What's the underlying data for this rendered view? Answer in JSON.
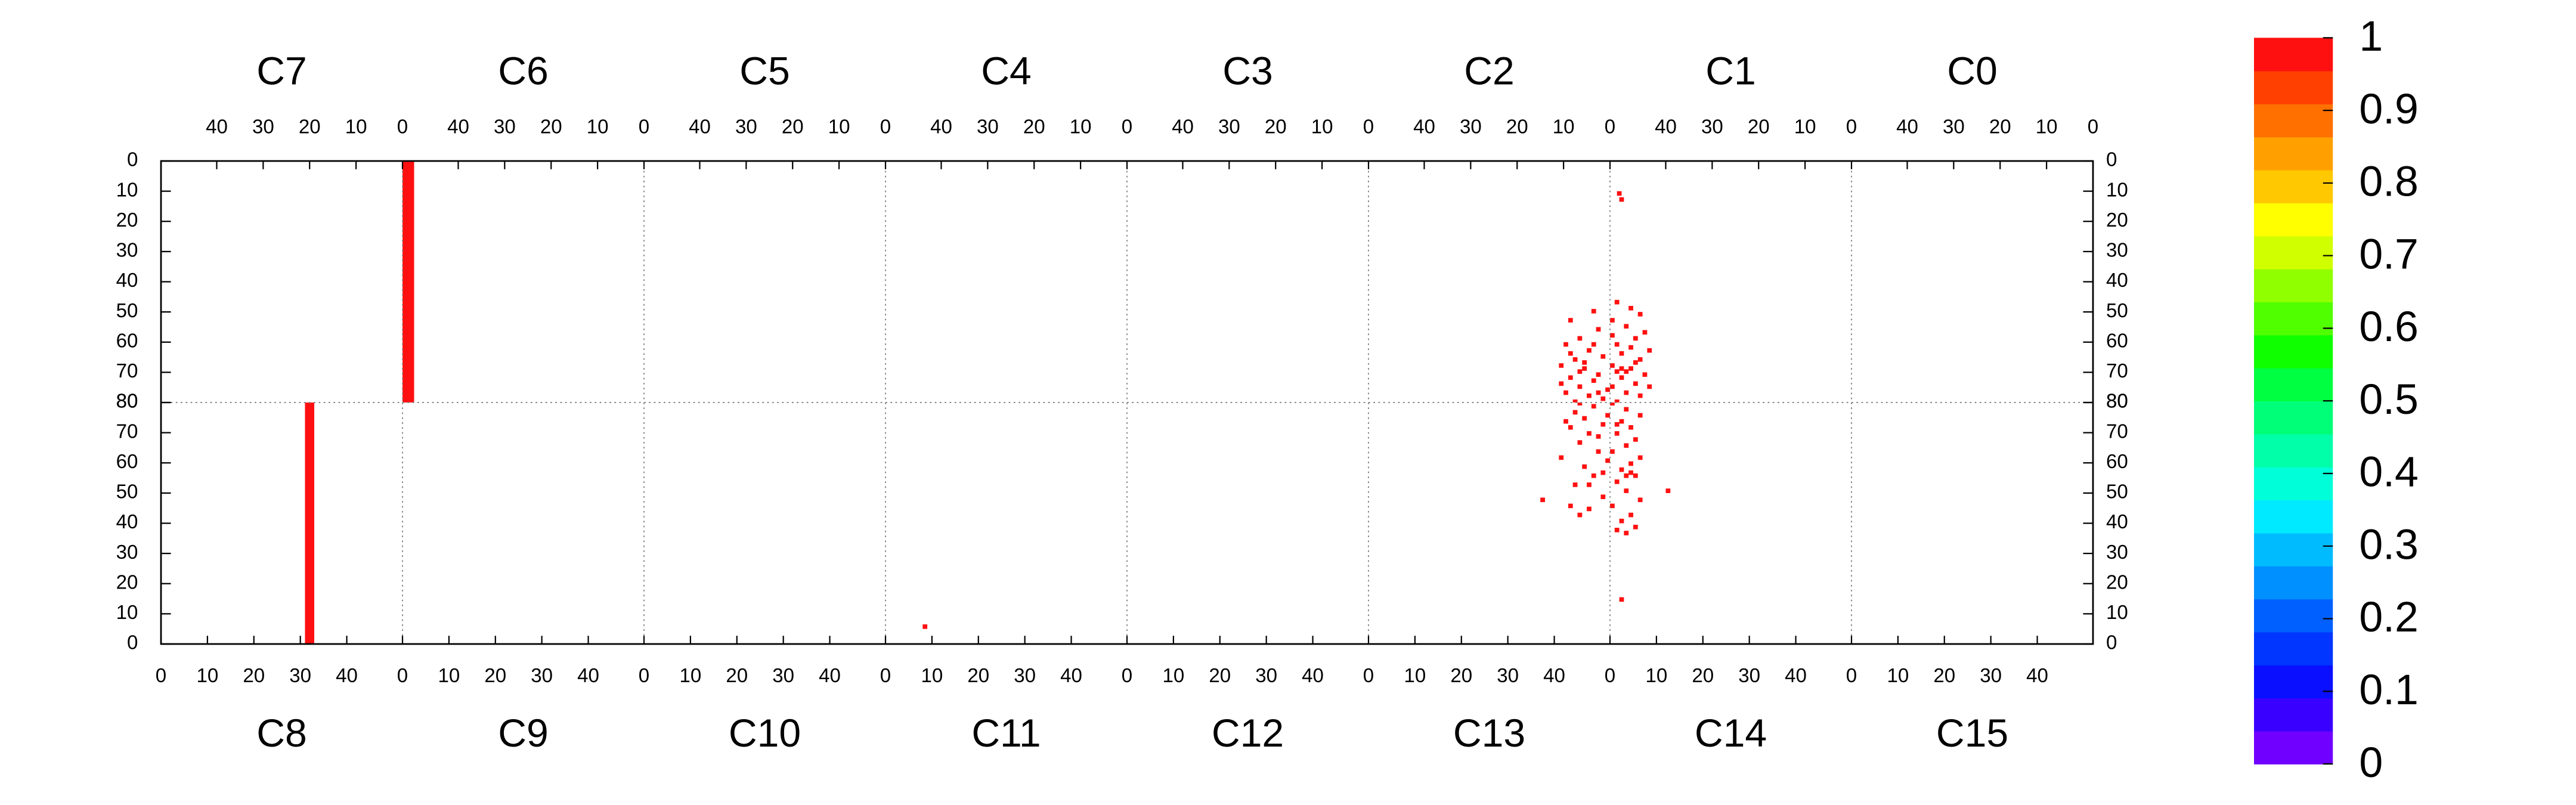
{
  "chart_data": {
    "type": "heatmap",
    "top_panels": [
      "C7",
      "C6",
      "C5",
      "C4",
      "C3",
      "C2",
      "C1",
      "C0"
    ],
    "bottom_panels": [
      "C8",
      "C9",
      "C10",
      "C11",
      "C12",
      "C13",
      "C14",
      "C15"
    ],
    "xlim": [
      0,
      52
    ],
    "xticks": [
      0,
      10,
      20,
      30,
      40
    ],
    "ylim": [
      0,
      80
    ],
    "yticks": [
      0,
      10,
      20,
      30,
      40,
      50,
      60,
      70,
      80
    ],
    "grid": true,
    "zlim": [
      0,
      1
    ],
    "zticks": [
      0,
      0.1,
      0.2,
      0.3,
      0.4,
      0.5,
      0.6,
      0.7,
      0.8,
      0.9,
      1
    ],
    "colors": [
      "#7000ff",
      "#3a00ff",
      "#0a10ff",
      "#0036ff",
      "#0060ff",
      "#0090ff",
      "#00bcff",
      "#00eaff",
      "#00ffd8",
      "#00ffa8",
      "#00ff78",
      "#00ff40",
      "#10ff00",
      "#50ff00",
      "#90ff00",
      "#d0ff00",
      "#ffff00",
      "#ffc800",
      "#ffa000",
      "#ff7000",
      "#ff4000",
      "#ff1010"
    ],
    "cells": [
      {
        "panel": "C6",
        "x": 49.5,
        "y": 0,
        "dx": 2.5,
        "dy": 80,
        "z": 1
      },
      {
        "panel": "C8",
        "x": 31,
        "y": 0,
        "dx": 2,
        "dy": 80,
        "z": 1
      },
      {
        "panel": "C11",
        "x": 8,
        "y": 5,
        "dx": 1,
        "dy": 1.5,
        "z": 1
      },
      {
        "panel": "C1",
        "x": 49.5,
        "y": 10,
        "dx": 1,
        "dy": 1.5,
        "z": 1
      },
      {
        "panel": "C1",
        "x": 49,
        "y": 12,
        "dx": 1,
        "dy": 1.5,
        "z": 1
      },
      {
        "panel": "C2",
        "x": 3,
        "y": 49,
        "dx": 1,
        "dy": 1.5,
        "z": 1
      },
      {
        "panel": "C2",
        "x": 8,
        "y": 52,
        "dx": 1,
        "dy": 1.5,
        "z": 1
      },
      {
        "panel": "C2",
        "x": 2,
        "y": 55,
        "dx": 1,
        "dy": 1.5,
        "z": 1
      },
      {
        "panel": "C2",
        "x": 6,
        "y": 58,
        "dx": 1,
        "dy": 1.5,
        "z": 1
      },
      {
        "panel": "C2",
        "x": 9,
        "y": 60,
        "dx": 1,
        "dy": 1.5,
        "z": 1
      },
      {
        "panel": "C2",
        "x": 4,
        "y": 62,
        "dx": 1,
        "dy": 1.5,
        "z": 1
      },
      {
        "panel": "C2",
        "x": 1,
        "y": 64,
        "dx": 1,
        "dy": 1.5,
        "z": 1
      },
      {
        "panel": "C2",
        "x": 7,
        "y": 65,
        "dx": 1,
        "dy": 1.5,
        "z": 1
      },
      {
        "panel": "C2",
        "x": 10,
        "y": 67,
        "dx": 1,
        "dy": 1.5,
        "z": 1
      },
      {
        "panel": "C2",
        "x": 5,
        "y": 68,
        "dx": 1,
        "dy": 1.5,
        "z": 1
      },
      {
        "panel": "C2",
        "x": 2,
        "y": 70,
        "dx": 1,
        "dy": 1.5,
        "z": 1
      },
      {
        "panel": "C2",
        "x": 8,
        "y": 71,
        "dx": 1,
        "dy": 1.5,
        "z": 1
      },
      {
        "panel": "C2",
        "x": 3,
        "y": 72,
        "dx": 1,
        "dy": 1.5,
        "z": 1
      },
      {
        "panel": "C2",
        "x": 6,
        "y": 74,
        "dx": 1,
        "dy": 1.5,
        "z": 1
      },
      {
        "panel": "C2",
        "x": 0,
        "y": 75,
        "dx": 1,
        "dy": 1.5,
        "z": 1
      },
      {
        "panel": "C2",
        "x": 9,
        "y": 76,
        "dx": 1,
        "dy": 1.5,
        "z": 1
      },
      {
        "panel": "C2",
        "x": 4,
        "y": 77,
        "dx": 1,
        "dy": 1.5,
        "z": 1
      },
      {
        "panel": "C2",
        "x": 1,
        "y": 78,
        "dx": 1,
        "dy": 1.5,
        "z": 1
      },
      {
        "panel": "C2",
        "x": 7,
        "y": 79,
        "dx": 1,
        "dy": 1,
        "z": 1
      },
      {
        "panel": "C2",
        "x": 5,
        "y": 66,
        "dx": 1,
        "dy": 1.5,
        "z": 1
      },
      {
        "panel": "C2",
        "x": 3,
        "y": 60,
        "dx": 1,
        "dy": 1.5,
        "z": 1
      },
      {
        "panel": "C2",
        "x": 10,
        "y": 73,
        "dx": 1,
        "dy": 1.5,
        "z": 1
      },
      {
        "panel": "C2",
        "x": 6,
        "y": 69,
        "dx": 1,
        "dy": 1.5,
        "z": 1
      },
      {
        "panel": "C2",
        "x": 2,
        "y": 76,
        "dx": 1,
        "dy": 1.5,
        "z": 1
      },
      {
        "panel": "C2",
        "x": 8,
        "y": 63,
        "dx": 1,
        "dy": 1.5,
        "z": 1
      },
      {
        "panel": "C1",
        "x": 50,
        "y": 46,
        "dx": 1,
        "dy": 1.5,
        "z": 1
      },
      {
        "panel": "C1",
        "x": 47,
        "y": 48,
        "dx": 1,
        "dy": 1.5,
        "z": 1
      },
      {
        "panel": "C1",
        "x": 45,
        "y": 50,
        "dx": 1,
        "dy": 1.5,
        "z": 1
      },
      {
        "panel": "C1",
        "x": 51,
        "y": 52,
        "dx": 1,
        "dy": 1.5,
        "z": 1
      },
      {
        "panel": "C1",
        "x": 48,
        "y": 54,
        "dx": 1,
        "dy": 1.5,
        "z": 1
      },
      {
        "panel": "C1",
        "x": 44,
        "y": 56,
        "dx": 1,
        "dy": 1.5,
        "z": 1
      },
      {
        "panel": "C1",
        "x": 46,
        "y": 58,
        "dx": 1,
        "dy": 1.5,
        "z": 1
      },
      {
        "panel": "C1",
        "x": 50,
        "y": 60,
        "dx": 1,
        "dy": 1.5,
        "z": 1
      },
      {
        "panel": "C1",
        "x": 43,
        "y": 62,
        "dx": 1,
        "dy": 1.5,
        "z": 1
      },
      {
        "panel": "C1",
        "x": 49,
        "y": 63,
        "dx": 1,
        "dy": 1.5,
        "z": 1
      },
      {
        "panel": "C1",
        "x": 45,
        "y": 65,
        "dx": 1,
        "dy": 1.5,
        "z": 1
      },
      {
        "panel": "C1",
        "x": 51,
        "y": 67,
        "dx": 1,
        "dy": 1.5,
        "z": 1
      },
      {
        "panel": "C1",
        "x": 47,
        "y": 68,
        "dx": 1,
        "dy": 1.5,
        "z": 1
      },
      {
        "panel": "C1",
        "x": 44,
        "y": 70,
        "dx": 1,
        "dy": 1.5,
        "z": 1
      },
      {
        "panel": "C1",
        "x": 49,
        "y": 71,
        "dx": 1,
        "dy": 1.5,
        "z": 1
      },
      {
        "panel": "C1",
        "x": 46,
        "y": 73,
        "dx": 1,
        "dy": 1.5,
        "z": 1
      },
      {
        "panel": "C1",
        "x": 51,
        "y": 74,
        "dx": 1,
        "dy": 1.5,
        "z": 1
      },
      {
        "panel": "C1",
        "x": 48,
        "y": 76,
        "dx": 1,
        "dy": 1.5,
        "z": 1
      },
      {
        "panel": "C1",
        "x": 45,
        "y": 77,
        "dx": 1,
        "dy": 1.5,
        "z": 1
      },
      {
        "panel": "C1",
        "x": 50,
        "y": 79,
        "dx": 1,
        "dy": 1,
        "z": 1
      },
      {
        "panel": "C1",
        "x": 43,
        "y": 74,
        "dx": 1,
        "dy": 1.5,
        "z": 1
      },
      {
        "panel": "C1",
        "x": 47,
        "y": 61,
        "dx": 1,
        "dy": 1.5,
        "z": 1
      },
      {
        "panel": "C1",
        "x": 51,
        "y": 57,
        "dx": 1,
        "dy": 1.5,
        "z": 1
      },
      {
        "panel": "C1",
        "x": 46,
        "y": 66,
        "dx": 1,
        "dy": 1.5,
        "z": 1
      },
      {
        "panel": "C1",
        "x": 49,
        "y": 68,
        "dx": 1,
        "dy": 1.5,
        "z": 1
      },
      {
        "panel": "C1",
        "x": 48,
        "y": 69,
        "dx": 1,
        "dy": 1.5,
        "z": 1
      },
      {
        "panel": "C1",
        "x": 50,
        "y": 69,
        "dx": 1,
        "dy": 1.5,
        "z": 1
      },
      {
        "panel": "C13",
        "x": 37,
        "y": 47,
        "dx": 1,
        "dy": 1.5,
        "z": 1
      },
      {
        "panel": "C13",
        "x": 43,
        "y": 45,
        "dx": 1,
        "dy": 1.5,
        "z": 1
      },
      {
        "panel": "C13",
        "x": 45,
        "y": 42,
        "dx": 1,
        "dy": 1.5,
        "z": 1
      },
      {
        "panel": "C13",
        "x": 47,
        "y": 44,
        "dx": 1,
        "dy": 1.5,
        "z": 1
      },
      {
        "panel": "C13",
        "x": 50,
        "y": 48,
        "dx": 1,
        "dy": 1.5,
        "z": 1
      },
      {
        "panel": "C13",
        "x": 44,
        "y": 52,
        "dx": 1,
        "dy": 1.5,
        "z": 1
      },
      {
        "panel": "C13",
        "x": 48,
        "y": 55,
        "dx": 1,
        "dy": 1.5,
        "z": 1
      },
      {
        "panel": "C13",
        "x": 46,
        "y": 58,
        "dx": 1,
        "dy": 1.5,
        "z": 1
      },
      {
        "panel": "C13",
        "x": 41,
        "y": 61,
        "dx": 1,
        "dy": 1.5,
        "z": 1
      },
      {
        "panel": "C13",
        "x": 51,
        "y": 60,
        "dx": 1,
        "dy": 1.5,
        "z": 1
      },
      {
        "panel": "C13",
        "x": 49,
        "y": 63,
        "dx": 1,
        "dy": 1.5,
        "z": 1
      },
      {
        "panel": "C13",
        "x": 45,
        "y": 66,
        "dx": 1,
        "dy": 1.5,
        "z": 1
      },
      {
        "panel": "C13",
        "x": 47,
        "y": 69,
        "dx": 1,
        "dy": 1.5,
        "z": 1
      },
      {
        "panel": "C13",
        "x": 43,
        "y": 71,
        "dx": 1,
        "dy": 1.5,
        "z": 1
      },
      {
        "panel": "C13",
        "x": 50,
        "y": 72,
        "dx": 1,
        "dy": 1.5,
        "z": 1
      },
      {
        "panel": "C13",
        "x": 46,
        "y": 74,
        "dx": 1,
        "dy": 1.5,
        "z": 1
      },
      {
        "panel": "C13",
        "x": 44,
        "y": 76,
        "dx": 1,
        "dy": 1.5,
        "z": 1
      },
      {
        "panel": "C13",
        "x": 48,
        "y": 78,
        "dx": 1,
        "dy": 1.5,
        "z": 1
      },
      {
        "panel": "C13",
        "x": 51,
        "y": 75,
        "dx": 1,
        "dy": 1.5,
        "z": 1
      },
      {
        "panel": "C13",
        "x": 42,
        "y": 73,
        "dx": 1,
        "dy": 1.5,
        "z": 1
      },
      {
        "panel": "C13",
        "x": 49,
        "y": 68,
        "dx": 1,
        "dy": 1.5,
        "z": 1
      },
      {
        "panel": "C13",
        "x": 47,
        "y": 52,
        "dx": 1,
        "dy": 1.5,
        "z": 1
      },
      {
        "panel": "C13",
        "x": 45,
        "y": 79,
        "dx": 1,
        "dy": 1,
        "z": 1
      },
      {
        "panel": "C13",
        "x": 50,
        "y": 56,
        "dx": 1,
        "dy": 1.5,
        "z": 1
      },
      {
        "panel": "C14",
        "x": 1,
        "y": 37,
        "dx": 1,
        "dy": 1.5,
        "z": 1
      },
      {
        "panel": "C14",
        "x": 3,
        "y": 36,
        "dx": 1,
        "dy": 1.5,
        "z": 1
      },
      {
        "panel": "C14",
        "x": 5,
        "y": 38,
        "dx": 1,
        "dy": 1.5,
        "z": 1
      },
      {
        "panel": "C14",
        "x": 2,
        "y": 40,
        "dx": 1,
        "dy": 1.5,
        "z": 1
      },
      {
        "panel": "C14",
        "x": 4,
        "y": 42,
        "dx": 1,
        "dy": 1.5,
        "z": 1
      },
      {
        "panel": "C14",
        "x": 0,
        "y": 45,
        "dx": 1,
        "dy": 1.5,
        "z": 1
      },
      {
        "panel": "C14",
        "x": 6,
        "y": 47,
        "dx": 1,
        "dy": 1.5,
        "z": 1
      },
      {
        "panel": "C14",
        "x": 3,
        "y": 50,
        "dx": 1,
        "dy": 1.5,
        "z": 1
      },
      {
        "panel": "C14",
        "x": 1,
        "y": 53,
        "dx": 1,
        "dy": 1.5,
        "z": 1
      },
      {
        "panel": "C14",
        "x": 5,
        "y": 55,
        "dx": 1,
        "dy": 1.5,
        "z": 1
      },
      {
        "panel": "C14",
        "x": 2,
        "y": 57,
        "dx": 1,
        "dy": 1.5,
        "z": 1
      },
      {
        "panel": "C14",
        "x": 4,
        "y": 59,
        "dx": 1,
        "dy": 1.5,
        "z": 1
      },
      {
        "panel": "C14",
        "x": 6,
        "y": 61,
        "dx": 1,
        "dy": 1.5,
        "z": 1
      },
      {
        "panel": "C14",
        "x": 0,
        "y": 63,
        "dx": 1,
        "dy": 1.5,
        "z": 1
      },
      {
        "panel": "C14",
        "x": 3,
        "y": 65,
        "dx": 1,
        "dy": 1.5,
        "z": 1
      },
      {
        "panel": "C14",
        "x": 5,
        "y": 67,
        "dx": 1,
        "dy": 1.5,
        "z": 1
      },
      {
        "panel": "C14",
        "x": 1,
        "y": 69,
        "dx": 1,
        "dy": 1.5,
        "z": 1
      },
      {
        "panel": "C14",
        "x": 4,
        "y": 71,
        "dx": 1,
        "dy": 1.5,
        "z": 1
      },
      {
        "panel": "C14",
        "x": 2,
        "y": 73,
        "dx": 1,
        "dy": 1.5,
        "z": 1
      },
      {
        "panel": "C14",
        "x": 6,
        "y": 75,
        "dx": 1,
        "dy": 1.5,
        "z": 1
      },
      {
        "panel": "C14",
        "x": 3,
        "y": 77,
        "dx": 1,
        "dy": 1.5,
        "z": 1
      },
      {
        "panel": "C14",
        "x": 0,
        "y": 79,
        "dx": 1,
        "dy": 1,
        "z": 1
      },
      {
        "panel": "C14",
        "x": 12,
        "y": 50,
        "dx": 1,
        "dy": 1.5,
        "z": 1
      },
      {
        "panel": "C14",
        "x": 2,
        "y": 14,
        "dx": 1,
        "dy": 1.5,
        "z": 1
      },
      {
        "panel": "C14",
        "x": 4,
        "y": 56,
        "dx": 1,
        "dy": 1.5,
        "z": 1
      },
      {
        "panel": "C14",
        "x": 3,
        "y": 55,
        "dx": 1,
        "dy": 1.5,
        "z": 1
      },
      {
        "panel": "C14",
        "x": 1,
        "y": 72,
        "dx": 1,
        "dy": 1.5,
        "z": 1
      }
    ]
  }
}
